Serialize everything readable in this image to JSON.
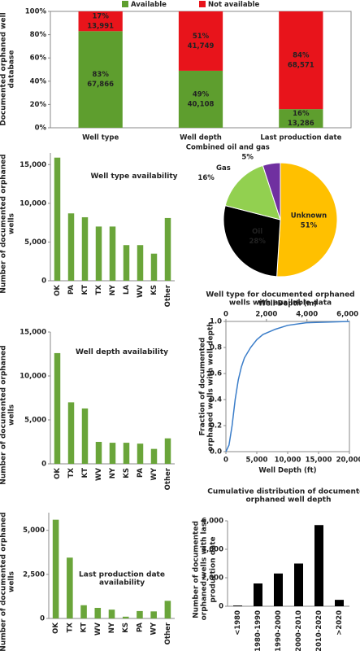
{
  "chart_data": [
    {
      "type": "stacked_bar",
      "ylabel": "Documented orphaned well database",
      "categories": [
        "Well type",
        "Well depth",
        "Last production date"
      ],
      "legend": "top",
      "series": [
        {
          "name": "Available",
          "color": "#5e9e2e",
          "values": [
            83,
            49,
            16
          ],
          "value_labels": [
            "83%",
            "49%",
            "16%"
          ],
          "counts": [
            {
              "value": 67866,
              "label": "67,866"
            },
            {
              "value": 40108,
              "label": "40,108"
            },
            {
              "value": 13286,
              "label": "13,286"
            }
          ]
        },
        {
          "name": "Not available",
          "color": "#e8141b",
          "values": [
            17,
            51,
            84
          ],
          "value_labels": [
            "17%",
            "51%",
            "84%"
          ],
          "counts": [
            {
              "value": 13991,
              "label": "13,991"
            },
            {
              "value": 41749,
              "label": "41,749"
            },
            {
              "value": 68571,
              "label": "68,571"
            }
          ]
        }
      ],
      "ylim": [
        0,
        100
      ],
      "yticks": [
        {
          "value": 0,
          "label": "0%"
        },
        {
          "value": 20,
          "label": "20%"
        },
        {
          "value": 40,
          "label": "40%"
        },
        {
          "value": 60,
          "label": "60%"
        },
        {
          "value": 80,
          "label": "80%"
        },
        {
          "value": 100,
          "label": "100%"
        }
      ]
    },
    {
      "type": "bar",
      "title": "Well type availability",
      "ylabel": "Number of documented orphaned wells",
      "categories": [
        "OK",
        "PA",
        "KT",
        "TX",
        "NY",
        "LA",
        "WV",
        "KS",
        "Other"
      ],
      "values": [
        15900,
        8700,
        8200,
        7000,
        7000,
        4600,
        4600,
        3500,
        8100
      ],
      "color": "#6aa53a",
      "ylim": [
        0,
        16500
      ],
      "yticks": [
        0,
        {
          "value": 5000,
          "label": "5,000"
        },
        {
          "value": 10000,
          "label": "10,000"
        },
        {
          "value": 15000,
          "label": "15,000"
        }
      ]
    },
    {
      "type": "pie",
      "title": "Well type for documented orphaned wells with available data",
      "categories": [
        "Unknown",
        "Oil",
        "Gas",
        "Combined oil and gas"
      ],
      "values": [
        51,
        28,
        16,
        5
      ],
      "value_labels": [
        "51%",
        "28%",
        "16%",
        "5%"
      ],
      "colors": [
        "#ffc000",
        "#000000",
        "#92d050",
        "#7030a0"
      ]
    },
    {
      "type": "bar",
      "title": "Well depth availability",
      "ylabel": "Number of documented orphaned wells",
      "categories": [
        "OK",
        "TX",
        "KT",
        "WV",
        "NY",
        "KS",
        "PA",
        "WY",
        "Other"
      ],
      "values": [
        12600,
        7000,
        6300,
        2500,
        2400,
        2400,
        2300,
        1700,
        2900
      ],
      "color": "#6aa53a",
      "ylim": [
        0,
        15000
      ],
      "yticks": [
        0,
        {
          "value": 5000,
          "label": "5,000"
        },
        {
          "value": 10000,
          "label": "10,000"
        },
        {
          "value": 15000,
          "label": "15,000"
        }
      ]
    },
    {
      "type": "line",
      "title": "Cumulative distribution of documented orphaned well depth",
      "xlabel": "Well Depth (ft)",
      "x2label": "Well Depth (m)",
      "ylabel": "Fraction of documented orphaned wells with well depth",
      "color": "#3a7dc9",
      "x": [
        0,
        500,
        1000,
        1500,
        2000,
        2500,
        3000,
        4000,
        5000,
        6000,
        8000,
        10000,
        13000,
        20000
      ],
      "values": [
        0,
        0.05,
        0.2,
        0.4,
        0.55,
        0.65,
        0.72,
        0.8,
        0.86,
        0.9,
        0.94,
        0.97,
        0.99,
        1.0
      ],
      "xlim": [
        0,
        20000
      ],
      "xticks": [
        0,
        {
          "value": 5000,
          "label": "5,000"
        },
        {
          "value": 10000,
          "label": "10,000"
        },
        {
          "value": 15000,
          "label": "15,000"
        },
        {
          "value": 20000,
          "label": "20,000"
        }
      ],
      "x2lim": [
        0,
        6096
      ],
      "x2ticks": [
        0,
        {
          "value": 2000,
          "label": "2,000"
        },
        {
          "value": 4000,
          "label": "4,000"
        },
        {
          "value": 6000,
          "label": "6,000"
        }
      ],
      "ylim": [
        0,
        1
      ],
      "yticks": [
        {
          "value": 0,
          "label": "0.0"
        },
        0.2,
        0.4,
        0.6,
        0.8,
        {
          "value": 1,
          "label": "1.0"
        }
      ]
    },
    {
      "type": "bar",
      "title": "Last production date availability",
      "ylabel": "Number of documented orphaned wells",
      "categories": [
        "OK",
        "TX",
        "KT",
        "WV",
        "NY",
        "KS",
        "PA",
        "WY",
        "Other"
      ],
      "values": [
        5600,
        3450,
        750,
        600,
        500,
        100,
        420,
        400,
        1000
      ],
      "color": "#6aa53a",
      "ylim": [
        0,
        6000
      ],
      "yticks": [
        0,
        {
          "value": 2500,
          "label": "2,500"
        },
        {
          "value": 5000,
          "label": "5,000"
        }
      ]
    },
    {
      "type": "bar",
      "ylabel": "Number of documented orphaned wells with last production date",
      "categories": [
        "<1980",
        "1980-1990",
        "1990-2000",
        "2000-2010",
        "2010-2020",
        ">2020"
      ],
      "values": [
        50,
        1600,
        2300,
        3000,
        5700,
        450
      ],
      "color": "#000000",
      "ylim": [
        0,
        6000
      ],
      "yticks": [
        0,
        {
          "value": 2000,
          "label": "2,000"
        },
        {
          "value": 4000,
          "label": "4,000"
        },
        {
          "value": 6000,
          "label": "6,000"
        }
      ]
    }
  ]
}
